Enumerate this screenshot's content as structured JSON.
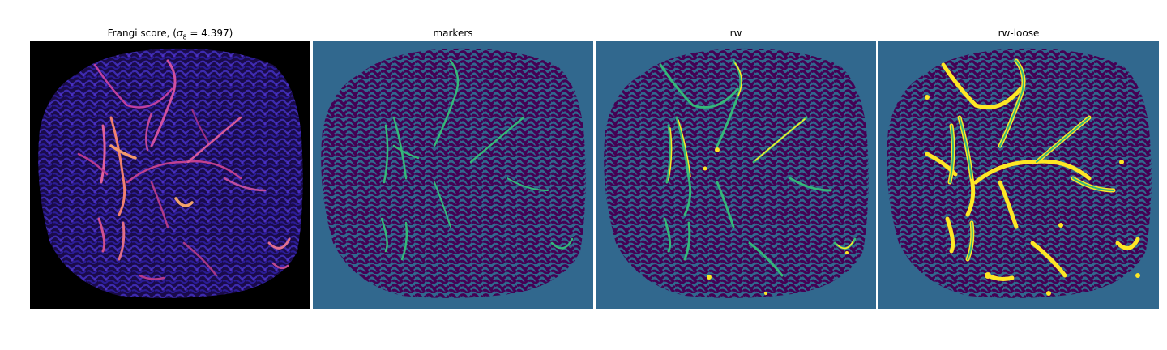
{
  "panels": [
    {
      "title_prefix": "Frangi score, (",
      "title_symbol": "σ",
      "title_subscript": "8",
      "title_suffix": " = 4.397)",
      "colormap": "magma",
      "background": "#000000"
    },
    {
      "title": "markers",
      "colormap": "viridis",
      "background": "#31688e"
    },
    {
      "title": "rw",
      "colormap": "viridis",
      "background": "#31688e"
    },
    {
      "title": "rw-loose",
      "colormap": "viridis",
      "background": "#31688e"
    }
  ],
  "colors": {
    "mask_fill": "#440154",
    "label_background": "#31688e",
    "marker_vessel": "#35b779",
    "rw_extra": "#fde725",
    "frangi_low": "#2a1a8c",
    "frangi_high": "#f9a86a"
  }
}
